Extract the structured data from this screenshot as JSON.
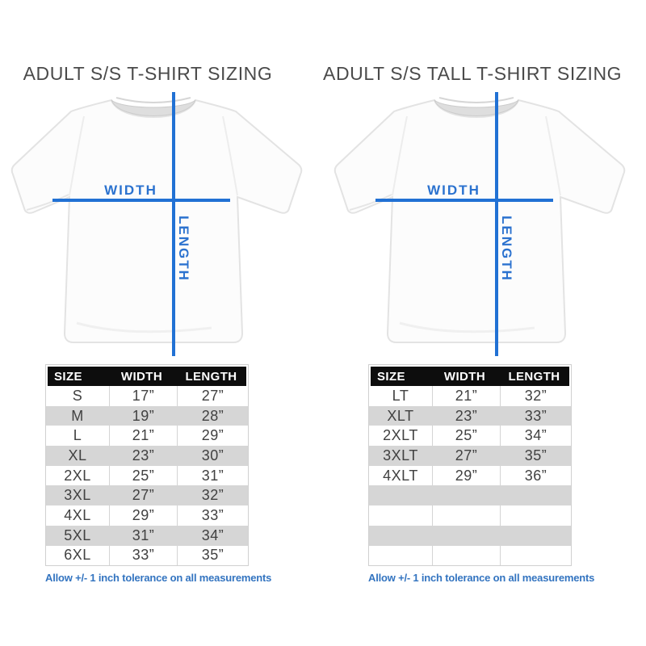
{
  "colors": {
    "measure_line_blue": "#2171d4",
    "note_blue": "#3374c0",
    "table_header_bg": "#0d0d0d",
    "row_gray": "#d6d6d6",
    "title_gray": "#4a4a4a"
  },
  "panels": [
    {
      "title": "ADULT S/S T-SHIRT SIZING",
      "diagram": {
        "width_label": "WIDTH",
        "length_label": "LENGTH"
      },
      "table": {
        "headers": [
          "SIZE",
          "WIDTH",
          "LENGTH"
        ],
        "rows": [
          [
            "S",
            "17”",
            "27”"
          ],
          [
            "M",
            "19”",
            "28”"
          ],
          [
            "L",
            "21”",
            "29”"
          ],
          [
            "XL",
            "23”",
            "30”"
          ],
          [
            "2XL",
            "25”",
            "31”"
          ],
          [
            "3XL",
            "27”",
            "32”"
          ],
          [
            "4XL",
            "29”",
            "33”"
          ],
          [
            "5XL",
            "31”",
            "34”"
          ],
          [
            "6XL",
            "33”",
            "35”"
          ]
        ]
      },
      "note": "Allow +/- 1 inch tolerance on all measurements"
    },
    {
      "title": "ADULT S/S TALL T-SHIRT SIZING",
      "diagram": {
        "width_label": "WIDTH",
        "length_label": "LENGTH"
      },
      "table": {
        "headers": [
          "SIZE",
          "WIDTH",
          "LENGTH"
        ],
        "rows": [
          [
            "LT",
            "21”",
            "32”"
          ],
          [
            "XLT",
            "23”",
            "33”"
          ],
          [
            "2XLT",
            "25”",
            "34”"
          ],
          [
            "3XLT",
            "27”",
            "35”"
          ],
          [
            "4XLT",
            "29”",
            "36”"
          ],
          [
            "",
            "",
            ""
          ],
          [
            "",
            "",
            ""
          ],
          [
            "",
            "",
            ""
          ],
          [
            "",
            "",
            ""
          ]
        ]
      },
      "note": "Allow +/- 1 inch tolerance on all measurements"
    }
  ]
}
